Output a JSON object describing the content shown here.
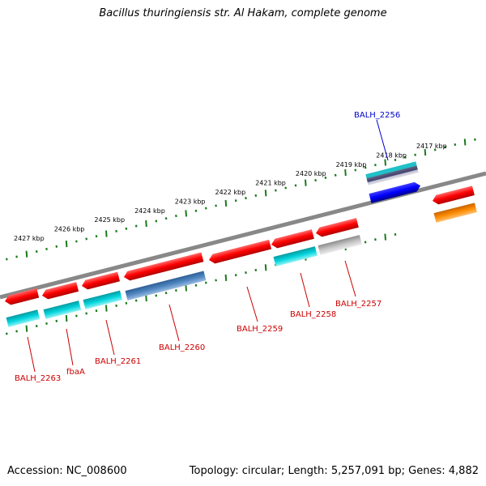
{
  "title": "Bacillus thuringiensis str. Al Hakam, complete genome",
  "footer": {
    "accession_label": "Accession:",
    "accession": "NC_008600",
    "topology_label": "Topology:",
    "topology": "circular",
    "length_label": "Length:",
    "length": "5,257,091 bp",
    "genes_label": "Genes:",
    "genes": "4,882"
  },
  "scale_ticks": [
    "2427 kbp",
    "2426 kbp",
    "2425 kbp",
    "2424 kbp",
    "2423 kbp",
    "2422 kbp",
    "2421 kbp",
    "2420 kbp",
    "2419 kbp",
    "2418 kbp",
    "2417 kbp"
  ],
  "genes_list": [
    {
      "id": "g1",
      "label": "BALH_2263",
      "label_color": "#cc0000"
    },
    {
      "id": "g2",
      "label": "fbaA",
      "label_color": "#cc0000"
    },
    {
      "id": "g3",
      "label": "BALH_2261",
      "label_color": "#cc0000"
    },
    {
      "id": "g4",
      "label": "BALH_2260",
      "label_color": "#cc0000"
    },
    {
      "id": "g5",
      "label": "BALH_2259",
      "label_color": "#cc0000"
    },
    {
      "id": "g6",
      "label": "BALH_2258",
      "label_color": "#cc0000"
    },
    {
      "id": "g7",
      "label": "BALH_2257",
      "label_color": "#cc0000"
    },
    {
      "id": "g8",
      "label": "BALH_2256",
      "label_color": "#0000cc"
    }
  ],
  "colors": {
    "gene_red": "#ff0000",
    "gene_blue": "#0000ff",
    "cyan": "#00c8d0",
    "steel": "#4a7fb8",
    "grey": "#bdbdbd",
    "orange": "#ff8c00",
    "backbone": "#808080",
    "ruler": "#1a7a1a"
  }
}
